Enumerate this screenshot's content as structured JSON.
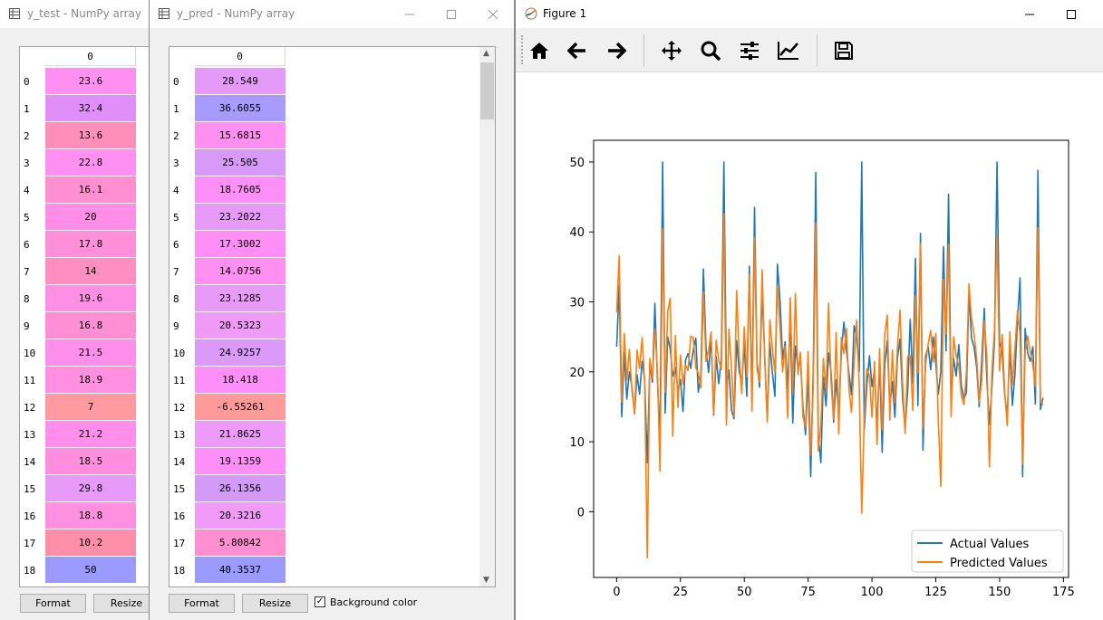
{
  "window_ytest": {
    "title": "y_test - NumPy array",
    "column_header": "0",
    "rows": [
      {
        "index": "0",
        "value": "23.6",
        "color": "#ff8ff0"
      },
      {
        "index": "1",
        "value": "32.4",
        "color": "#e08ff8"
      },
      {
        "index": "2",
        "value": "13.6",
        "color": "#ff8fb8"
      },
      {
        "index": "3",
        "value": "22.8",
        "color": "#ff8ff0"
      },
      {
        "index": "4",
        "value": "16.1",
        "color": "#ff8fd0"
      },
      {
        "index": "5",
        "value": "20",
        "color": "#ff8fe6"
      },
      {
        "index": "6",
        "value": "17.8",
        "color": "#ff8fd8"
      },
      {
        "index": "7",
        "value": "14",
        "color": "#ff8fc0"
      },
      {
        "index": "8",
        "value": "19.6",
        "color": "#ff8fe4"
      },
      {
        "index": "9",
        "value": "16.8",
        "color": "#ff8fd4"
      },
      {
        "index": "10",
        "value": "21.5",
        "color": "#ff8feb"
      },
      {
        "index": "11",
        "value": "18.9",
        "color": "#ff8fe0"
      },
      {
        "index": "12",
        "value": "7",
        "color": "#ff9aa0"
      },
      {
        "index": "13",
        "value": "21.2",
        "color": "#ff8fea"
      },
      {
        "index": "14",
        "value": "18.5",
        "color": "#ff8fde"
      },
      {
        "index": "15",
        "value": "29.8",
        "color": "#e89af8"
      },
      {
        "index": "16",
        "value": "18.8",
        "color": "#ff8fdf"
      },
      {
        "index": "17",
        "value": "10.2",
        "color": "#ff8fa8"
      },
      {
        "index": "18",
        "value": "50",
        "color": "#9a9aff"
      }
    ],
    "buttons": {
      "format": "Format",
      "resize": "Resize"
    }
  },
  "window_ypred": {
    "title": "y_pred - NumPy array",
    "column_header": "0",
    "rows": [
      {
        "index": "0",
        "value": "28.549",
        "color": "#e49af8"
      },
      {
        "index": "1",
        "value": "36.6055",
        "color": "#a89aff"
      },
      {
        "index": "2",
        "value": "15.6815",
        "color": "#ff8ff0"
      },
      {
        "index": "3",
        "value": "25.505",
        "color": "#d89af8"
      },
      {
        "index": "4",
        "value": "18.7605",
        "color": "#ff8ff8"
      },
      {
        "index": "5",
        "value": "23.2022",
        "color": "#e89af8"
      },
      {
        "index": "6",
        "value": "17.3002",
        "color": "#ff8ff6"
      },
      {
        "index": "7",
        "value": "14.0756",
        "color": "#ff8ff0"
      },
      {
        "index": "8",
        "value": "23.1285",
        "color": "#e89af8"
      },
      {
        "index": "9",
        "value": "20.5323",
        "color": "#f09af8"
      },
      {
        "index": "10",
        "value": "24.9257",
        "color": "#dc9af8"
      },
      {
        "index": "11",
        "value": "18.418",
        "color": "#ff8ff8"
      },
      {
        "index": "12",
        "value": "-6.55261",
        "color": "#ff9a9a"
      },
      {
        "index": "13",
        "value": "21.8625",
        "color": "#ee9af8"
      },
      {
        "index": "14",
        "value": "19.1359",
        "color": "#ff8ff8"
      },
      {
        "index": "15",
        "value": "26.1356",
        "color": "#d49af8"
      },
      {
        "index": "16",
        "value": "20.3216",
        "color": "#f29af8"
      },
      {
        "index": "17",
        "value": "5.80842",
        "color": "#ff8fd0"
      },
      {
        "index": "18",
        "value": "40.3537",
        "color": "#9a9aff"
      }
    ],
    "buttons": {
      "format": "Format",
      "resize": "Resize",
      "background_label": "Background color",
      "background_checked": true
    }
  },
  "figure": {
    "title": "Figure 1",
    "toolbar": [
      "home-icon",
      "back-arrow-icon",
      "forward-arrow-icon",
      "pan-icon",
      "zoom-icon",
      "configure-subplots-icon",
      "edit-axis-icon",
      "save-icon"
    ]
  },
  "chart_data": {
    "type": "line",
    "title": "",
    "xlabel": "",
    "ylabel": "",
    "xlim": [
      -9,
      177
    ],
    "ylim": [
      -9.4,
      53.1
    ],
    "xticks": [
      0,
      25,
      50,
      75,
      100,
      125,
      150,
      175
    ],
    "yticks": [
      0,
      10,
      20,
      30,
      40,
      50
    ],
    "grid": false,
    "legend": "bottom-right",
    "series": [
      {
        "name": "Actual Values",
        "color": "#1f77b4",
        "values": [
          23.6,
          32.4,
          13.6,
          22.8,
          16.1,
          20,
          17.8,
          14,
          19.6,
          16.8,
          21.5,
          18.9,
          7,
          21.2,
          18.5,
          29.8,
          18.8,
          10.2,
          50,
          14.1,
          25,
          23.3,
          19.4,
          20.6,
          17.4,
          18.9,
          14.3,
          21.7,
          22.6,
          20.5,
          23.1,
          24.8,
          17.1,
          19.5,
          34.7,
          23.4,
          19.9,
          25,
          13.8,
          22.2,
          18.3,
          21.9,
          50,
          17.7,
          20.3,
          14.5,
          13.3,
          24.5,
          20.1,
          18.2,
          23.9,
          16.5,
          35.1,
          15.6,
          43.5,
          21.4,
          17.8,
          31.6,
          22,
          13.1,
          24.1,
          19.9,
          16.5,
          35.4,
          30.1,
          21.8,
          24.3,
          17.5,
          27.9,
          12.7,
          23.7,
          20.6,
          21.7,
          14.9,
          11,
          19.6,
          5,
          20.2,
          48.5,
          10.9,
          7,
          19.3,
          15.1,
          22.7,
          20,
          12.8,
          18.9,
          14,
          22.9,
          27.1,
          23,
          19.8,
          16.7,
          26.6,
          25,
          20,
          50,
          11.7,
          18,
          22.3,
          17.9,
          20.3,
          11.8,
          22,
          8.5,
          21,
          24.4,
          14.9,
          18.6,
          13.5,
          22,
          24.7,
          16.2,
          11.9,
          17.2,
          27.5,
          18.4,
          36.2,
          15.2,
          39.8,
          8.8,
          22.2,
          23.6,
          20.3,
          25,
          21.2,
          16.8,
          20.1,
          37.9,
          23,
          45.4,
          15.6,
          21.9,
          19.4,
          23.9,
          18.1,
          16.1,
          17,
          31.6,
          24.8,
          23.5,
          20.7,
          15,
          21.6,
          29.1,
          18.9,
          12.5,
          17.9,
          24.5,
          50,
          24.2,
          22.8,
          16.6,
          13.8,
          23.4,
          15.2,
          19.6,
          27.5,
          33.4,
          5,
          26.2,
          22.7,
          21.5,
          23.6,
          15.4,
          48.8,
          14.6,
          16.3
        ]
      },
      {
        "name": "Predicted Values",
        "color": "#ff7f0e",
        "values": [
          28.5,
          36.6,
          15.7,
          25.5,
          18.8,
          23.2,
          17.3,
          14.1,
          23.1,
          20.5,
          24.9,
          18.4,
          -6.6,
          21.9,
          19.1,
          26.1,
          20.3,
          5.8,
          40.4,
          17.1,
          28.6,
          30.5,
          10.8,
          25.2,
          14.9,
          22.4,
          18.2,
          21,
          20.2,
          25.1,
          24.9,
          20.6,
          19.8,
          17.7,
          31.4,
          21.5,
          23,
          25.7,
          14,
          24.5,
          21.7,
          20.3,
          42.6,
          12.4,
          26.1,
          20.5,
          13.6,
          31.6,
          22.2,
          16.9,
          26.4,
          19.3,
          33.9,
          14.4,
          39.2,
          20.4,
          18.5,
          34.6,
          21.6,
          12.8,
          27.4,
          23.4,
          19.9,
          32.4,
          26.3,
          20,
          23.7,
          13.4,
          30.6,
          17.1,
          31.2,
          19.6,
          22.8,
          13.5,
          12.1,
          22.9,
          8.1,
          17.8,
          41.3,
          8.7,
          12.4,
          21.9,
          17.2,
          29.8,
          18.4,
          13.2,
          25.6,
          11.1,
          24.9,
          22.6,
          26.2,
          17.6,
          14.2,
          21.2,
          27.4,
          18.1,
          -0.2,
          13.3,
          20.4,
          19.4,
          13.5,
          21.5,
          9.6,
          23.3,
          11.7,
          25.4,
          28.1,
          13.1,
          23.1,
          15.6,
          23.5,
          28.8,
          18.3,
          11.2,
          22.2,
          22.3,
          14.5,
          30.9,
          19.8,
          38.3,
          11.9,
          21,
          24,
          25.9,
          21.4,
          25.5,
          13,
          3.6,
          33.2,
          25.4,
          38.3,
          13.6,
          25,
          22.3,
          20.9,
          16.6,
          15.3,
          19.9,
          32.6,
          27.7,
          25.3,
          22,
          15.6,
          18.7,
          27.3,
          22.4,
          6.4,
          20.2,
          26,
          39.6,
          20.1,
          25.3,
          17,
          12.3,
          25.7,
          18.1,
          23.3,
          28.8,
          25.3,
          6.8,
          23,
          25.1,
          22.9,
          21,
          17.9,
          40.6,
          15.8,
          15.3
        ]
      }
    ]
  }
}
